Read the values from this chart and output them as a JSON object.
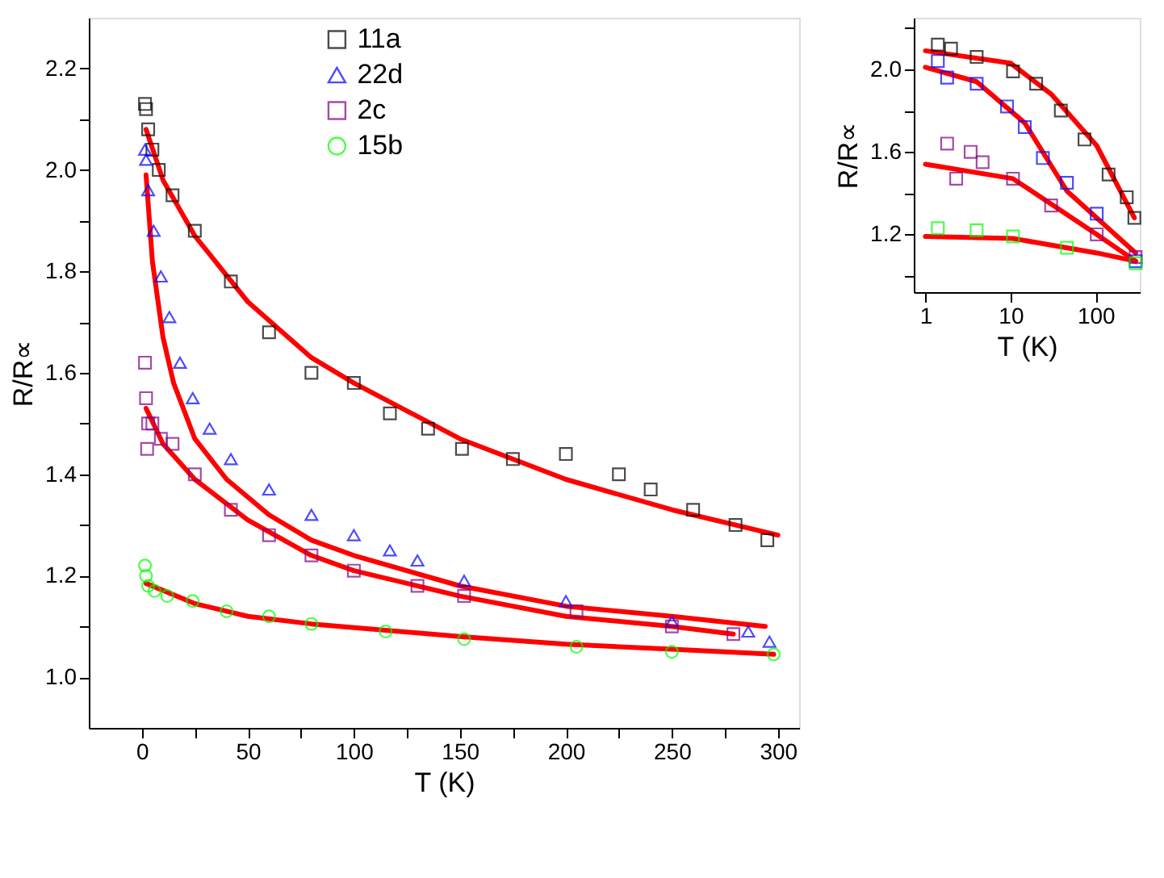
{
  "chart_data": [
    {
      "type": "scatter",
      "xlabel": "T (K)",
      "ylabel": "R/R∝",
      "xlim": [
        -25,
        310
      ],
      "ylim": [
        0.9,
        2.3
      ],
      "xticks": [
        0,
        {
          "value": 25,
          "label": null
        },
        50,
        {
          "value": 75,
          "label": null
        },
        100,
        {
          "value": 125,
          "label": null
        },
        150,
        {
          "value": 175,
          "label": null
        },
        200,
        {
          "value": 225,
          "label": null
        },
        250,
        {
          "value": 275,
          "label": null
        },
        300
      ],
      "yticks": [
        {
          "value": 1.0,
          "label": "1.0"
        },
        {
          "value": 1.1,
          "label": null
        },
        {
          "value": 1.2,
          "label": "1.2"
        },
        {
          "value": 1.3,
          "label": null
        },
        {
          "value": 1.4,
          "label": "1.4"
        },
        {
          "value": 1.5,
          "label": null
        },
        {
          "value": 1.6,
          "label": "1.6"
        },
        {
          "value": 1.7,
          "label": null
        },
        {
          "value": 1.8,
          "label": "1.8"
        },
        {
          "value": 1.9,
          "label": null
        },
        {
          "value": 2.0,
          "label": "2.0"
        },
        {
          "value": 2.1,
          "label": null
        },
        {
          "value": 2.2,
          "label": "2.2"
        }
      ],
      "grid": false,
      "legend": "top",
      "series": [
        {
          "name": "11a",
          "color": "#000000",
          "marker": "square",
          "x": [
            1.5,
            2,
            3,
            5,
            8,
            14.5,
            25,
            42,
            60,
            80,
            100,
            117,
            135,
            151,
            175,
            200,
            225,
            240,
            260,
            280,
            295
          ],
          "values": [
            2.13,
            2.12,
            2.08,
            2.04,
            2.0,
            1.95,
            1.88,
            1.78,
            1.68,
            1.6,
            1.58,
            1.52,
            1.49,
            1.45,
            1.43,
            1.44,
            1.4,
            1.37,
            1.33,
            1.3,
            1.27
          ]
        },
        {
          "name": "22d",
          "color": "#0000ff",
          "marker": "triangle",
          "x": [
            1.5,
            2,
            3,
            5.6,
            9,
            13,
            18,
            24,
            32,
            42,
            60,
            80,
            100,
            117,
            130,
            152,
            200,
            250,
            286,
            296
          ],
          "values": [
            2.04,
            2.02,
            1.96,
            1.88,
            1.79,
            1.71,
            1.62,
            1.55,
            1.49,
            1.43,
            1.37,
            1.32,
            1.28,
            1.25,
            1.23,
            1.19,
            1.15,
            1.11,
            1.09,
            1.07
          ]
        },
        {
          "name": "2c",
          "color": "#800080",
          "marker": "square",
          "x": [
            1.5,
            2,
            2.5,
            3,
            5,
            9,
            14.5,
            25,
            42,
            60,
            80,
            100,
            130,
            152,
            205,
            250,
            279
          ],
          "values": [
            1.62,
            1.55,
            1.45,
            1.5,
            1.5,
            1.47,
            1.46,
            1.4,
            1.33,
            1.28,
            1.24,
            1.21,
            1.18,
            1.16,
            1.13,
            1.1,
            1.085
          ]
        },
        {
          "name": "15b",
          "color": "#00ff00",
          "marker": "circle",
          "x": [
            1.5,
            2,
            3,
            6,
            12,
            24,
            40,
            60,
            80,
            115,
            152,
            205,
            250,
            298
          ],
          "values": [
            1.22,
            1.2,
            1.18,
            1.17,
            1.16,
            1.15,
            1.13,
            1.12,
            1.105,
            1.09,
            1.075,
            1.06,
            1.05,
            1.045
          ]
        },
        {
          "type": "line",
          "color": "#ff0000",
          "x": [
            2,
            10,
            25,
            50,
            80,
            100,
            150,
            200,
            250,
            300
          ],
          "values": [
            2.08,
            1.98,
            1.87,
            1.74,
            1.63,
            1.58,
            1.47,
            1.39,
            1.33,
            1.28
          ]
        },
        {
          "type": "line",
          "color": "#ff0000",
          "x": [
            2,
            5,
            10,
            15,
            25,
            40,
            60,
            80,
            100,
            150,
            200,
            250,
            294
          ],
          "values": [
            1.99,
            1.82,
            1.67,
            1.58,
            1.47,
            1.39,
            1.32,
            1.27,
            1.24,
            1.18,
            1.14,
            1.12,
            1.1
          ]
        },
        {
          "type": "line",
          "color": "#ff0000",
          "x": [
            2,
            10,
            25,
            50,
            80,
            100,
            150,
            200,
            250,
            279
          ],
          "values": [
            1.53,
            1.46,
            1.39,
            1.31,
            1.24,
            1.21,
            1.16,
            1.12,
            1.1,
            1.085
          ]
        },
        {
          "type": "line",
          "color": "#ff0000",
          "x": [
            2,
            25,
            50,
            80,
            150,
            200,
            250,
            298
          ],
          "values": [
            1.185,
            1.145,
            1.12,
            1.105,
            1.08,
            1.065,
            1.055,
            1.045
          ]
        }
      ]
    },
    {
      "type": "scatter",
      "xlabel": "T (K)",
      "ylabel": "R/R∝",
      "log": "x",
      "xlim": [
        0.73,
        330
      ],
      "ylim": [
        0.92,
        2.25
      ],
      "xticks": [
        1,
        10,
        100
      ],
      "yticks": [
        {
          "value": 1.0,
          "label": null
        },
        {
          "value": 1.2,
          "label": "1.2"
        },
        {
          "value": 1.4,
          "label": null
        },
        {
          "value": 1.6,
          "label": "1.6"
        },
        {
          "value": 1.8,
          "label": null
        },
        {
          "value": 2.0,
          "label": "2.0"
        },
        {
          "value": 2.2,
          "label": null
        }
      ],
      "grid": false,
      "series": [
        {
          "color": "#000000",
          "marker": "square",
          "x": [
            1.4,
            2,
            4,
            10.7,
            20,
            39,
            74,
            142,
            232,
            285
          ],
          "values": [
            2.12,
            2.1,
            2.06,
            1.99,
            1.93,
            1.8,
            1.66,
            1.49,
            1.38,
            1.28
          ]
        },
        {
          "color": "#0000ff",
          "marker": "square",
          "x": [
            1.4,
            1.8,
            4,
            9.1,
            14.7,
            24,
            46,
            103,
            295
          ],
          "values": [
            2.04,
            1.96,
            1.93,
            1.82,
            1.72,
            1.57,
            1.45,
            1.3,
            1.07
          ]
        },
        {
          "color": "#800080",
          "marker": "square",
          "x": [
            1.8,
            2.3,
            3.4,
            4.7,
            10.7,
            30,
            103,
            295
          ],
          "values": [
            1.64,
            1.47,
            1.6,
            1.55,
            1.47,
            1.34,
            1.2,
            1.09
          ]
        },
        {
          "color": "#00ff00",
          "marker": "square",
          "x": [
            1.4,
            4,
            10.7,
            46,
            295
          ],
          "values": [
            1.23,
            1.22,
            1.19,
            1.135,
            1.06
          ]
        },
        {
          "type": "line",
          "color": "#ff0000",
          "x": [
            1,
            10,
            30,
            103,
            285
          ],
          "values": [
            2.09,
            2.03,
            1.88,
            1.63,
            1.28
          ]
        },
        {
          "type": "line",
          "color": "#ff0000",
          "x": [
            1,
            4,
            14.7,
            46,
            295
          ],
          "values": [
            2.01,
            1.94,
            1.74,
            1.41,
            1.11
          ]
        },
        {
          "type": "line",
          "color": "#ff0000",
          "x": [
            1,
            10.7,
            103,
            295
          ],
          "values": [
            1.54,
            1.47,
            1.2,
            1.07
          ]
        },
        {
          "type": "line",
          "color": "#ff0000",
          "x": [
            1,
            10.7,
            103,
            295
          ],
          "values": [
            1.19,
            1.18,
            1.11,
            1.07
          ]
        }
      ]
    }
  ]
}
